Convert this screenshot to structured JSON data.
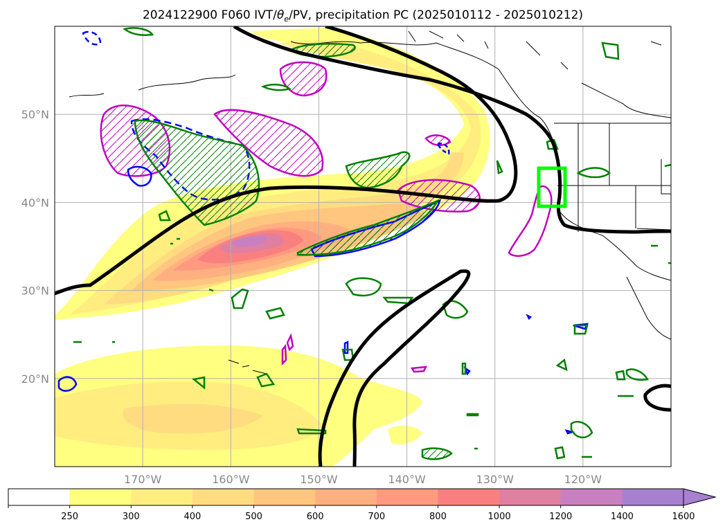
{
  "chart_data": {
    "type": "map",
    "title": "2024122900 F060 IVT/θe/PV, precipitation PC (2025010112 - 2025010212)",
    "title_parts": {
      "pre": "2024122900 F060 IVT/",
      "theta": "θ",
      "sub": "e",
      "post": "/PV, precipitation PC (2025010112 - 2025010212)"
    },
    "x_ticks": [
      "170°W",
      "160°W",
      "150°W",
      "140°W",
      "130°W",
      "120°W"
    ],
    "x_tick_values": [
      -170,
      -160,
      -150,
      -140,
      -130,
      -120
    ],
    "y_ticks": [
      "20°N",
      "30°N",
      "40°N",
      "50°N"
    ],
    "y_tick_values": [
      20,
      30,
      40,
      50
    ],
    "xlim": [
      -180,
      -110
    ],
    "ylim": [
      10,
      60
    ],
    "grid": true,
    "colorbar": {
      "levels": [
        "250",
        "300",
        "400",
        "500",
        "600",
        "700",
        "800",
        "1000",
        "1200",
        "1400",
        "1600"
      ],
      "colors": [
        "#ffffff",
        "#ffff80",
        "#ffed80",
        "#ffdc80",
        "#ffc680",
        "#ffb080",
        "#ff9a80",
        "#fa8080",
        "#e080a0",
        "#c880c0",
        "#a880d0"
      ],
      "extend": "max"
    },
    "ivt_core_max_band": "1200-1400",
    "contours": {
      "pv_line_color": "#000000",
      "precip_pc_color": "#008000",
      "theta_e_high_color": "#c000c0",
      "theta_e_low_color": "#0000ff"
    },
    "target_box": {
      "lon": [
        -125,
        -122
      ],
      "lat": [
        39.5,
        44
      ],
      "color": "#00ff00"
    }
  }
}
